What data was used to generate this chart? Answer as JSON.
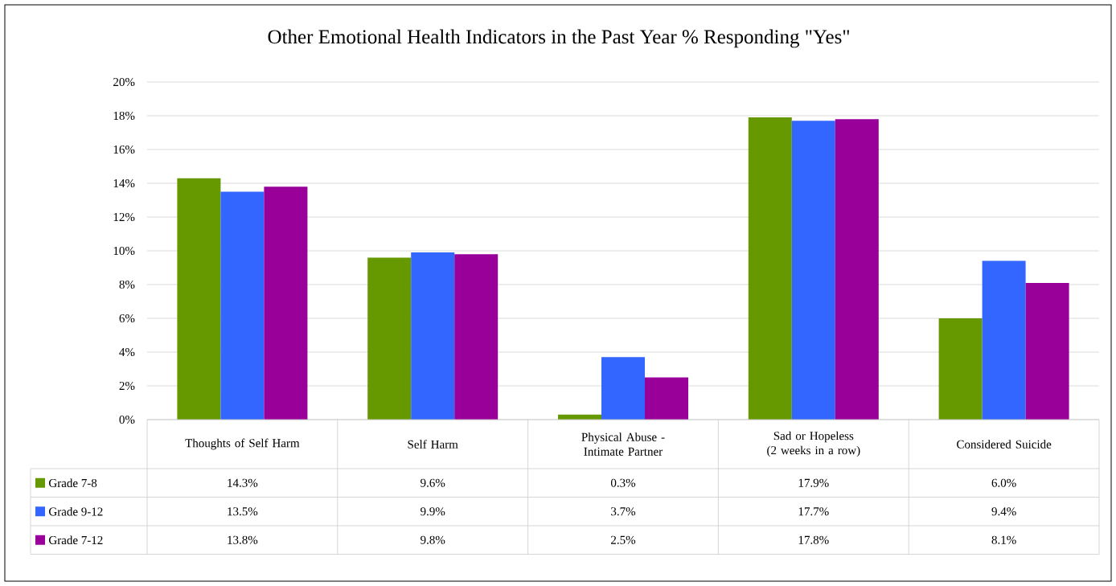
{
  "chart_data": {
    "type": "bar",
    "title": "Other Emotional Health Indicators in the Past Year % Responding \"Yes\"",
    "categories": [
      "Thoughts of Self Harm",
      "Self Harm",
      "Physical Abuse - Intimate Partner",
      "Sad or Hopeless (2 weeks in a row)",
      "Considered Suicide"
    ],
    "series": [
      {
        "name": "Grade  7-8",
        "color": "#669900",
        "values": [
          14.3,
          9.6,
          0.3,
          17.9,
          6.0
        ],
        "value_labels": [
          "14.3%",
          "9.6%",
          "0.3%",
          "17.9%",
          "6.0%"
        ]
      },
      {
        "name": "Grade  9-12",
        "color": "#3366ff",
        "values": [
          13.5,
          9.9,
          3.7,
          17.7,
          9.4
        ],
        "value_labels": [
          "13.5%",
          "9.9%",
          "3.7%",
          "17.7%",
          "9.4%"
        ]
      },
      {
        "name": "Grade  7-12",
        "color": "#990099",
        "values": [
          13.8,
          9.8,
          2.5,
          17.8,
          8.1
        ],
        "value_labels": [
          "13.8%",
          "9.8%",
          "2.5%",
          "17.8%",
          "8.1%"
        ]
      }
    ],
    "ylim": [
      0,
      20
    ],
    "yticks": [
      {
        "value": 0,
        "label": "0%"
      },
      {
        "value": 2,
        "label": "2%"
      },
      {
        "value": 4,
        "label": "4%"
      },
      {
        "value": 6,
        "label": "6%"
      },
      {
        "value": 8,
        "label": "8%"
      },
      {
        "value": 10,
        "label": "10%"
      },
      {
        "value": 12,
        "label": "12%"
      },
      {
        "value": 14,
        "label": "14%"
      },
      {
        "value": 16,
        "label": "16%"
      },
      {
        "value": 18,
        "label": "18%"
      },
      {
        "value": 20,
        "label": "20%"
      }
    ],
    "grid": "y",
    "legend": "bottom"
  }
}
